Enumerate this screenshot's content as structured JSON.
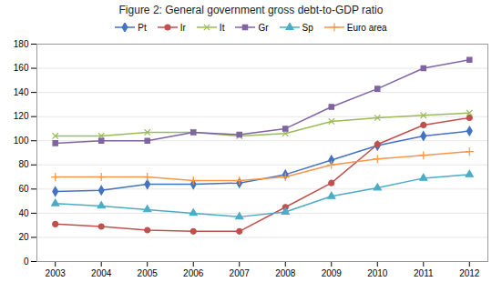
{
  "chart_data": {
    "type": "line",
    "title": "Figure 2: General government gross debt-to-GDP ratio",
    "x": [
      2003,
      2004,
      2005,
      2006,
      2007,
      2008,
      2009,
      2010,
      2011,
      2012
    ],
    "series": [
      {
        "name": "Pt",
        "color": "#4472C4",
        "marker": "diamond",
        "values": [
          58,
          59,
          64,
          64,
          65,
          72,
          84,
          96,
          104,
          108
        ]
      },
      {
        "name": "Ir",
        "color": "#C0504D",
        "marker": "circle",
        "values": [
          31,
          29,
          26,
          25,
          25,
          45,
          65,
          97,
          113,
          119
        ]
      },
      {
        "name": "It",
        "color": "#9BBB59",
        "marker": "times",
        "values": [
          104,
          104,
          107,
          107,
          104,
          106,
          116,
          119,
          121,
          123
        ]
      },
      {
        "name": "Gr",
        "color": "#8064A2",
        "marker": "square",
        "values": [
          98,
          100,
          100,
          107,
          105,
          110,
          128,
          143,
          160,
          167
        ]
      },
      {
        "name": "Sp",
        "color": "#4BACC6",
        "marker": "triangle",
        "values": [
          48,
          46,
          43,
          40,
          37,
          41,
          54,
          61,
          69,
          72
        ]
      },
      {
        "name": "Euro area",
        "color": "#F79646",
        "marker": "plus",
        "values": [
          70,
          70,
          70,
          67,
          67,
          70,
          80,
          85,
          88,
          91
        ]
      }
    ],
    "xlim": [
      2002.6,
      2012.4
    ],
    "xticks": [
      2003,
      2004,
      2005,
      2006,
      2007,
      2008,
      2009,
      2010,
      2011,
      2012
    ],
    "ylim": [
      0,
      180
    ],
    "yticks": [
      0,
      20,
      40,
      60,
      80,
      100,
      120,
      140,
      160,
      180
    ],
    "grid": "y",
    "legend": "top"
  }
}
